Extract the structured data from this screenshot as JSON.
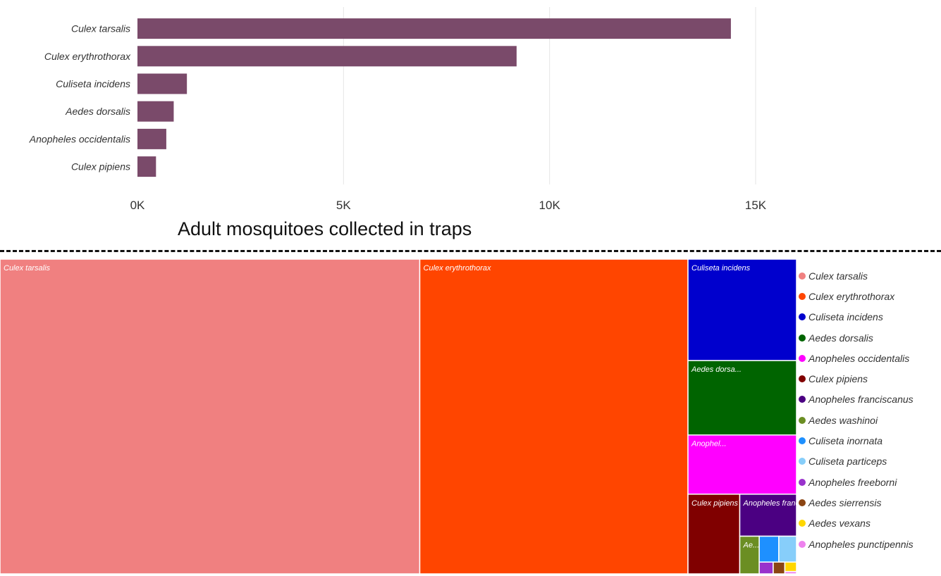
{
  "bar_xlabel": "Adult mosquitoes collected in traps",
  "colors": {
    "bar": "#7a4a6a",
    "grid": "#e6e6e6"
  },
  "chart_data": [
    {
      "type": "bar",
      "orientation": "horizontal",
      "categories": [
        "Culex tarsalis",
        "Culex erythrothorax",
        "Culiseta incidens",
        "Aedes dorsalis",
        "Anopheles occidentalis",
        "Culex pipiens"
      ],
      "values": [
        14400,
        9200,
        1200,
        880,
        700,
        450
      ],
      "xlim": [
        0,
        15000
      ],
      "xticks": [
        0,
        5000,
        10000,
        15000
      ],
      "xtick_labels": [
        "0K",
        "5K",
        "10K",
        "15K"
      ],
      "xlabel": "Adult mosquitoes collected in traps",
      "ylabel": "",
      "grid": "vertical"
    },
    {
      "type": "treemap",
      "legend_position": "right",
      "items": [
        {
          "name": "Culex tarsalis",
          "label": "Culex tarsalis",
          "value": 14400,
          "color": "#f08080"
        },
        {
          "name": "Culex erythrothorax",
          "label": "Culex erythrothorax",
          "value": 9200,
          "color": "#ff4500"
        },
        {
          "name": "Culiseta incidens",
          "label": "Culiseta incidens",
          "value": 1200,
          "color": "#0000cd"
        },
        {
          "name": "Aedes dorsalis",
          "label": "Aedes dorsa...",
          "value": 880,
          "color": "#006400"
        },
        {
          "name": "Anopheles occidentalis",
          "label": "Anophel...",
          "value": 700,
          "color": "#ff00ff"
        },
        {
          "name": "Culex pipiens",
          "label": "Culex pipiens",
          "value": 450,
          "color": "#800000"
        },
        {
          "name": "Anopheles franciscanus",
          "label": "Anopheles francis...",
          "value": 260,
          "color": "#4b0082"
        },
        {
          "name": "Aedes washinoi",
          "label": "Ae...",
          "value": 80,
          "color": "#6b8e23"
        },
        {
          "name": "Culiseta inornata",
          "label": "",
          "value": 55,
          "color": "#1e90ff"
        },
        {
          "name": "Culiseta particeps",
          "label": "",
          "value": 50,
          "color": "#87cefa"
        },
        {
          "name": "Anopheles freeborni",
          "label": "",
          "value": 18,
          "color": "#9932cc"
        },
        {
          "name": "Aedes sierrensis",
          "label": "",
          "value": 15,
          "color": "#8b4513"
        },
        {
          "name": "Aedes vexans",
          "label": "",
          "value": 12,
          "color": "#ffd700"
        },
        {
          "name": "Anopheles punctipennis",
          "label": "",
          "value": 3,
          "color": "#ee82ee"
        }
      ]
    }
  ]
}
